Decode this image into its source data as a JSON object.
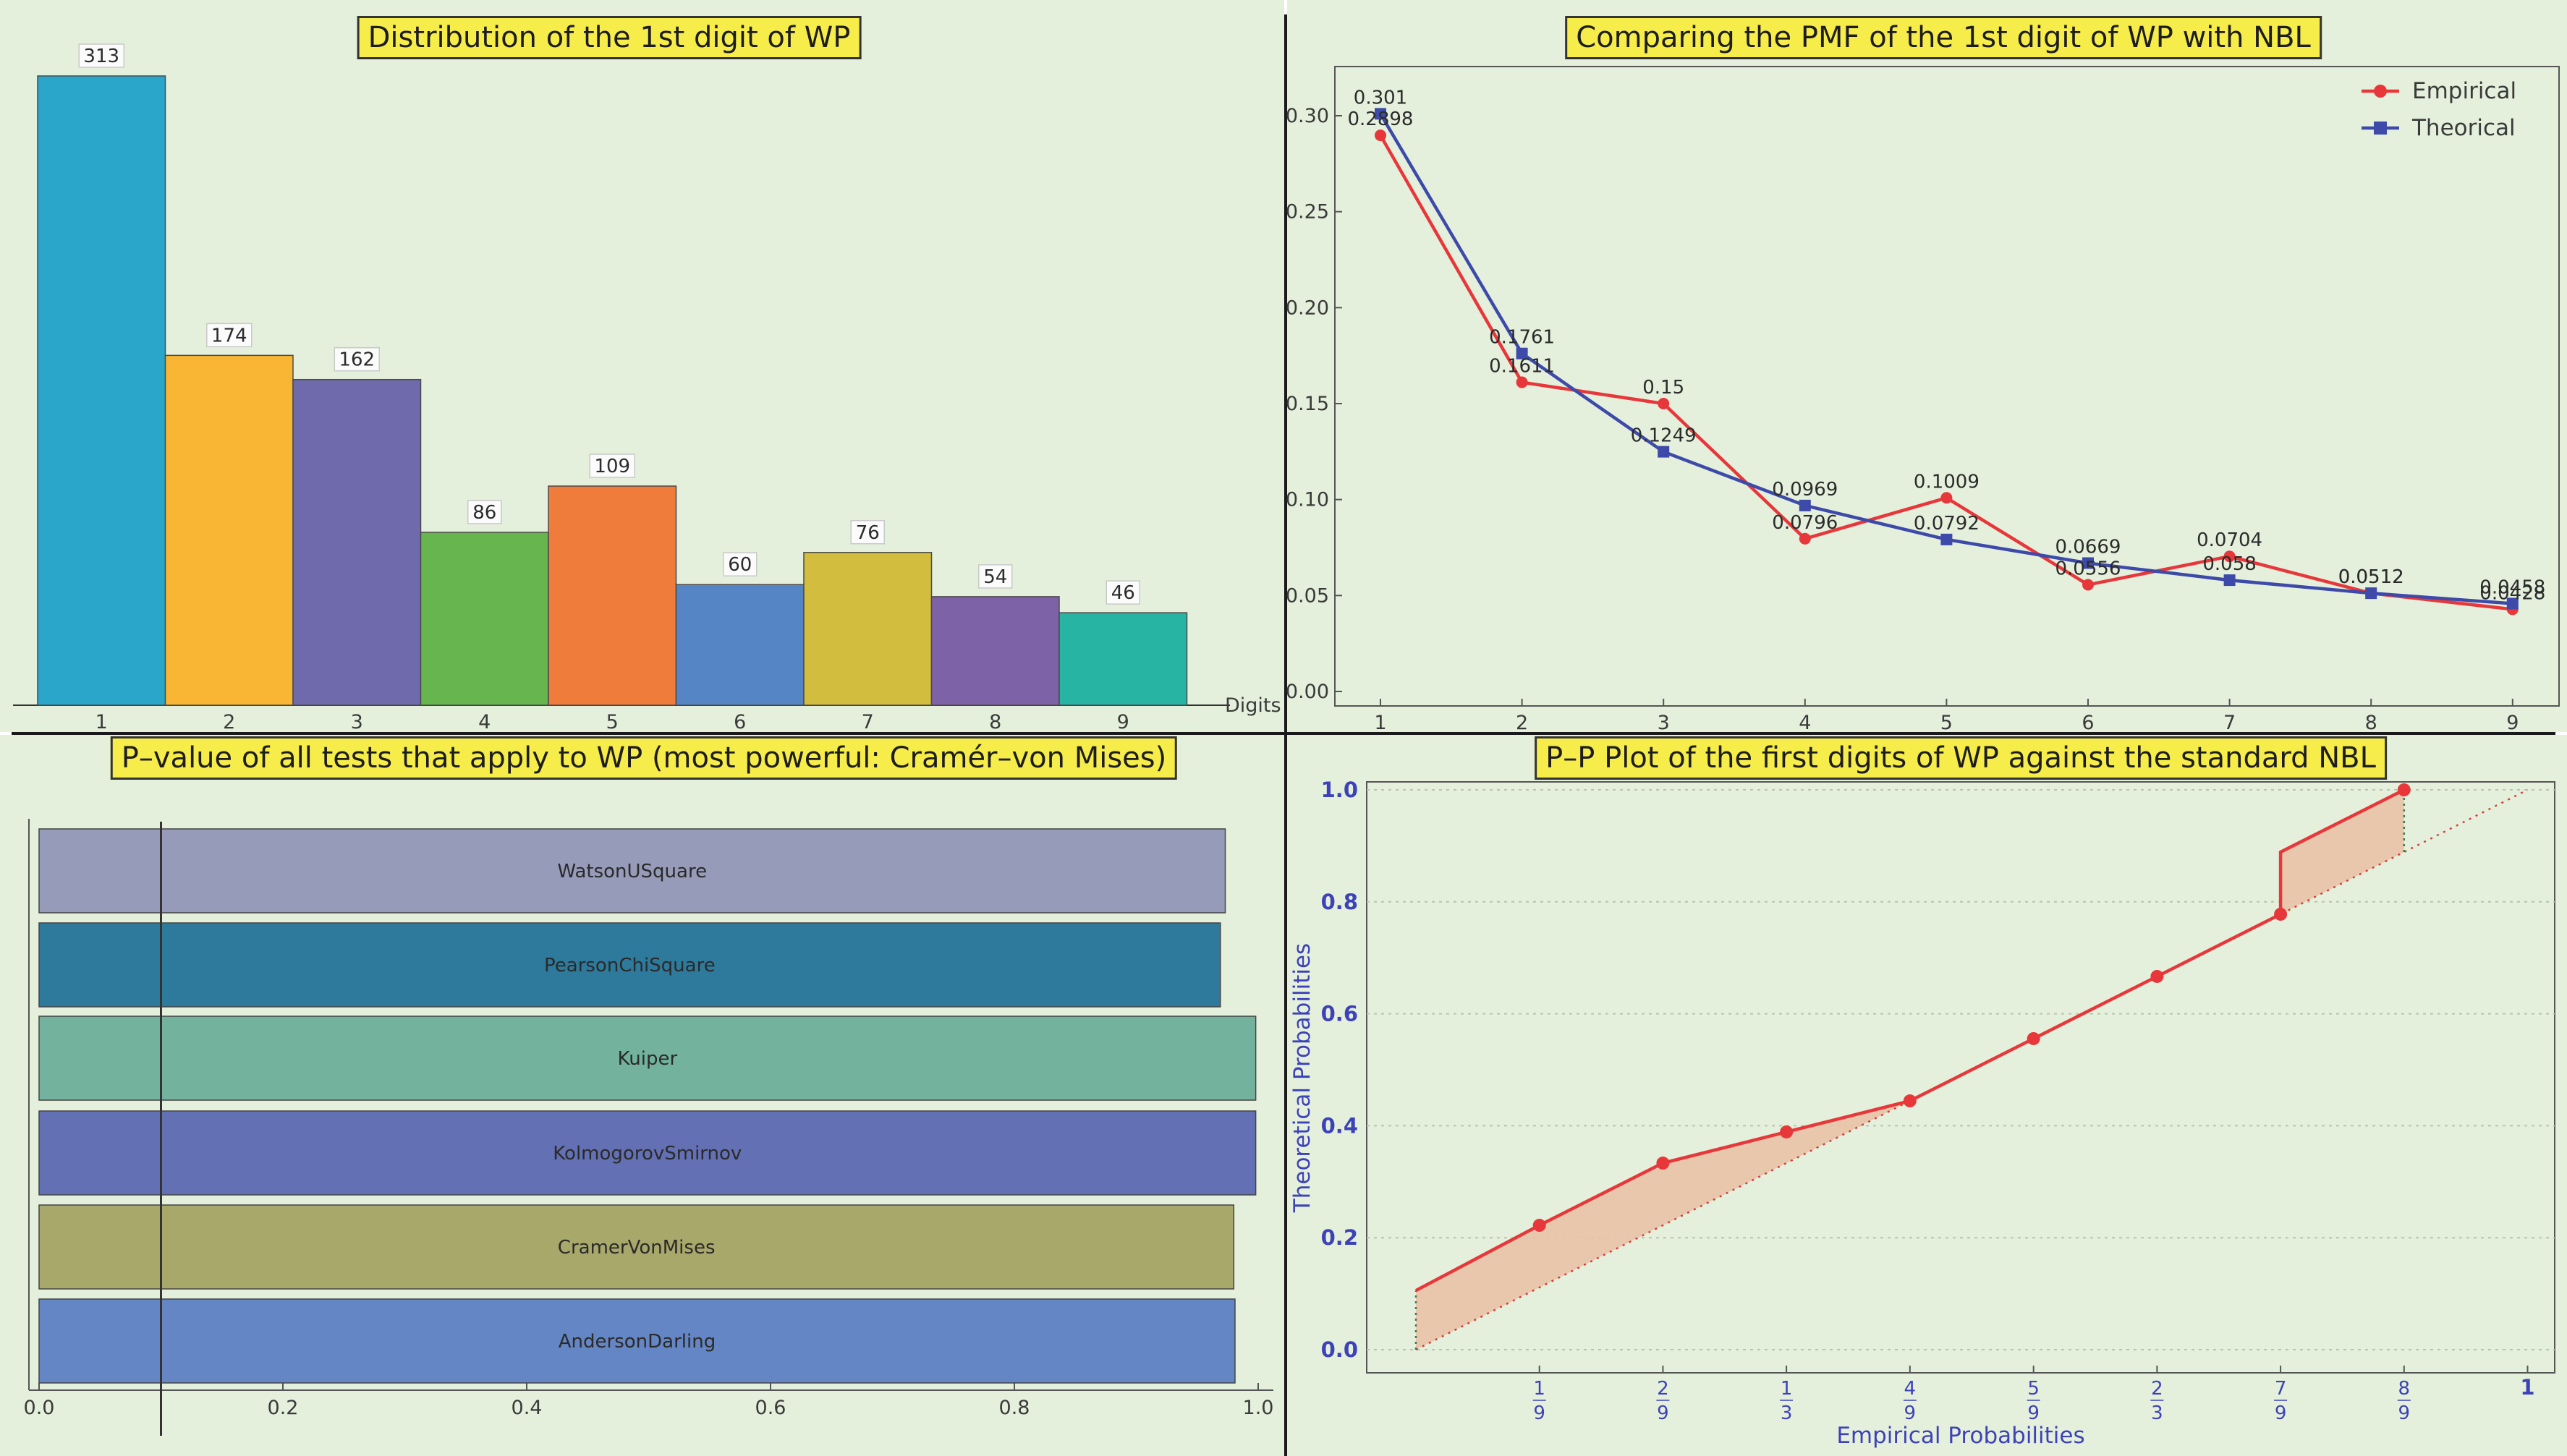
{
  "chart_data": [
    {
      "type": "bar",
      "title": "Distribution of the 1st digit of WP",
      "xlabel": "Digits",
      "categories": [
        "1",
        "2",
        "3",
        "4",
        "5",
        "6",
        "7",
        "8",
        "9"
      ],
      "values": [
        313,
        174,
        162,
        86,
        109,
        60,
        76,
        54,
        46
      ],
      "data_labels": [
        "313",
        "174",
        "162",
        "86",
        "109",
        "60",
        "76",
        "54",
        "46"
      ],
      "colors": [
        "#2ba6cb",
        "#f8b634",
        "#6e6aab",
        "#67b54f",
        "#f07c3b",
        "#5585c4",
        "#d3bd3e",
        "#7e62a8",
        "#28b4a3"
      ]
    },
    {
      "type": "line",
      "title": "Comparing the PMF of the 1st digit of WP with NBL",
      "x": [
        1,
        2,
        3,
        4,
        5,
        6,
        7,
        8,
        9
      ],
      "ylim": [
        0,
        0.3
      ],
      "yticks": [
        "0.00",
        "0.05",
        "0.10",
        "0.15",
        "0.20",
        "0.25",
        "0.30"
      ],
      "legend_position": "top-right",
      "series": [
        {
          "name": "Empirical",
          "color": "#e8373a",
          "values": [
            0.2898,
            0.1611,
            0.15,
            0.0796,
            0.1009,
            0.0556,
            0.0704,
            0.0512,
            0.0428
          ],
          "labels": [
            "0.2898",
            "0.1611",
            "0.15",
            "0.0796",
            "0.1009",
            "0.0556",
            "0.0704",
            "0.0512",
            "0.0428"
          ]
        },
        {
          "name": "Theorical",
          "color": "#3d4aa9",
          "values": [
            0.301,
            0.1761,
            0.1249,
            0.0969,
            0.0792,
            0.0669,
            0.058,
            0.0512,
            0.0458
          ],
          "labels": [
            "0.301",
            "0.1761",
            "0.1249",
            "0.0969",
            "0.0792",
            "0.0669",
            "0.058",
            "0.0512",
            "0.0458"
          ]
        }
      ]
    },
    {
      "type": "bar",
      "orientation": "horizontal",
      "title": "P–value of all tests that apply to WP (most powerful: Cramér–von Mises)",
      "categories": [
        "WatsonUSquare",
        "PearsonChiSquare",
        "Kuiper",
        "KolmogorovSmirnov",
        "CramerVonMises",
        "AndersonDarling"
      ],
      "values": [
        0.973,
        0.969,
        0.998,
        0.998,
        0.98,
        0.981
      ],
      "colors": [
        "#959bb8",
        "#2e7a9c",
        "#73b39d",
        "#6370b4",
        "#a8a86b",
        "#6586c4"
      ],
      "xlim": [
        0,
        1
      ],
      "xticks": [
        "0.0",
        "0.2",
        "0.4",
        "0.6",
        "0.8",
        "1.0"
      ],
      "reference_line": 0.1
    },
    {
      "type": "line",
      "title": "P–P Plot of the first digits of WP against the standard NBL",
      "xlabel": "Empirical Probabilities",
      "ylabel": "Theoretical Probabilities",
      "xlim": [
        0,
        1
      ],
      "ylim": [
        0,
        1
      ],
      "yticks": [
        "0.0",
        "0.2",
        "0.4",
        "0.6",
        "0.8",
        "1.0"
      ],
      "xticks": [
        {
          "v": 0.1111,
          "num": "1",
          "den": "9"
        },
        {
          "v": 0.2222,
          "num": "2",
          "den": "9"
        },
        {
          "v": 0.3333,
          "num": "1",
          "den": "3"
        },
        {
          "v": 0.4444,
          "num": "4",
          "den": "9"
        },
        {
          "v": 0.5556,
          "num": "5",
          "den": "9"
        },
        {
          "v": 0.6667,
          "num": "2",
          "den": "3"
        },
        {
          "v": 0.7778,
          "num": "7",
          "den": "9"
        },
        {
          "v": 0.8889,
          "num": "8",
          "den": "9"
        },
        {
          "v": 1.0,
          "num": "1",
          "den": ""
        }
      ],
      "series": [
        {
          "name": "",
          "color": "#e8373a",
          "x": [
            0,
            0.1111,
            0.2222,
            0.3333,
            0.4444,
            0.5556,
            0.6667,
            0.7778,
            0.7778,
            0.8889
          ],
          "y": [
            0.1057,
            0.2222,
            0.3333,
            0.3889,
            0.4444,
            0.5556,
            0.6667,
            0.7778,
            0.8889,
            1.0
          ],
          "points_x": [
            0.1111,
            0.2222,
            0.3333,
            0.4444,
            0.5556,
            0.6667,
            0.7778,
            0.8889
          ],
          "points_y": [
            0.2222,
            0.3333,
            0.3889,
            0.4444,
            0.5556,
            0.6667,
            0.7778,
            1.0
          ]
        }
      ],
      "reference_line": "y = x"
    }
  ]
}
